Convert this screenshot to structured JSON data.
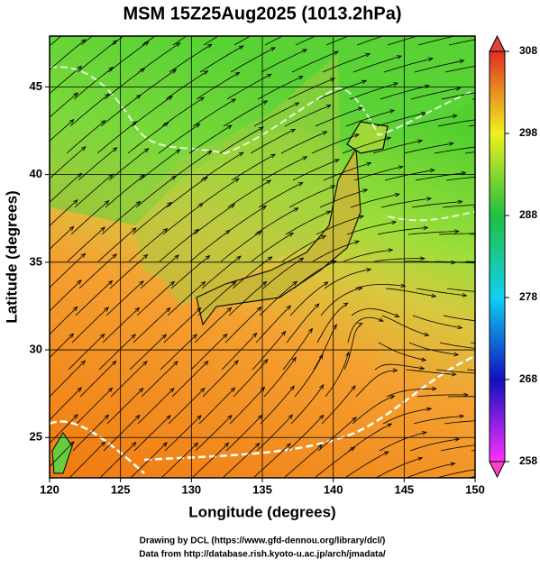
{
  "title": "MSM 15Z25Aug2025 (1013.2hPa)",
  "xlabel": "Longitude (degrees)",
  "ylabel": "Latitude  (degrees)",
  "xlim": [
    120,
    150
  ],
  "ylim": [
    22.7,
    47.9
  ],
  "xticks": [
    120,
    125,
    130,
    135,
    140,
    145,
    150
  ],
  "yticks": [
    25,
    30,
    35,
    40,
    45
  ],
  "colorbar": {
    "lim": [
      258,
      308
    ],
    "ticks": [
      258,
      268,
      278,
      288,
      298,
      308
    ]
  },
  "footer": [
    "Drawing by DCL (https://www.gfd-dennou.org/library/dcl/)",
    "Data from http://database.rish.kyoto-u.ac.jp/arch/jmadata/"
  ]
}
